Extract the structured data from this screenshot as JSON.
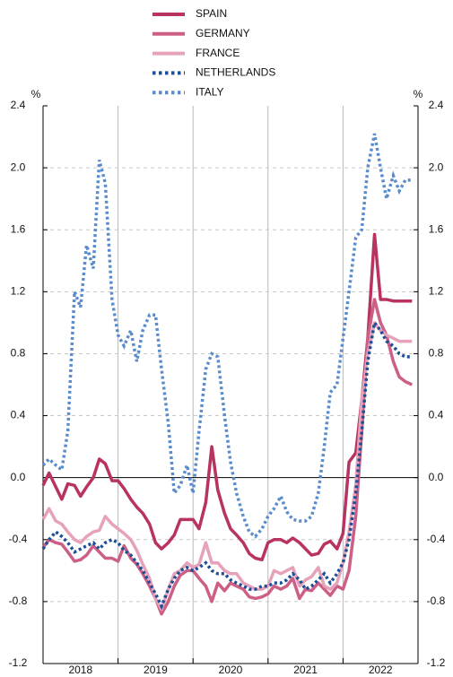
{
  "chart_data": {
    "type": "line",
    "y_unit": "%",
    "xlim": [
      2018,
      2023
    ],
    "xticks": [
      {
        "value": 2018.5,
        "label": "2018"
      },
      {
        "value": 2019.5,
        "label": "2019"
      },
      {
        "value": 2020.5,
        "label": "2020"
      },
      {
        "value": 2021.5,
        "label": "2021"
      },
      {
        "value": 2022.5,
        "label": "2022"
      }
    ],
    "xgrid": [
      2019,
      2020,
      2021,
      2022
    ],
    "ylim": [
      -1.2,
      2.4
    ],
    "yticks": [
      {
        "value": 2.4,
        "label": "2.4"
      },
      {
        "value": 2,
        "label": "2.0"
      },
      {
        "value": 1.6,
        "label": "1.6"
      },
      {
        "value": 1.2,
        "label": "1.2"
      },
      {
        "value": 0.8,
        "label": "0.8"
      },
      {
        "value": 0.4,
        "label": "0.4"
      },
      {
        "value": 0,
        "label": "0.0"
      },
      {
        "value": -0.4,
        "label": "-0.4"
      },
      {
        "value": -0.8,
        "label": "-0.8"
      },
      {
        "value": -1.2,
        "label": "-1.2"
      }
    ],
    "grid": true,
    "x": [
      2018,
      2018.08,
      2018.17,
      2018.25,
      2018.33,
      2018.42,
      2018.5,
      2018.58,
      2018.67,
      2018.75,
      2018.83,
      2018.92,
      2019,
      2019.08,
      2019.17,
      2019.25,
      2019.33,
      2019.42,
      2019.5,
      2019.58,
      2019.67,
      2019.75,
      2019.83,
      2019.92,
      2020,
      2020.08,
      2020.17,
      2020.25,
      2020.33,
      2020.42,
      2020.5,
      2020.58,
      2020.67,
      2020.75,
      2020.83,
      2020.92,
      2021,
      2021.08,
      2021.17,
      2021.25,
      2021.33,
      2021.42,
      2021.5,
      2021.58,
      2021.67,
      2021.75,
      2021.83,
      2021.92,
      2022,
      2022.08,
      2022.17,
      2022.25,
      2022.33,
      2022.42,
      2022.5,
      2022.58,
      2022.67,
      2022.75,
      2022.83,
      2022.92
    ],
    "series": [
      {
        "name": "SPAIN",
        "color": "#b83262",
        "dotted": false,
        "values": [
          -0.05,
          0.03,
          -0.06,
          -0.14,
          -0.04,
          -0.05,
          -0.12,
          -0.06,
          0.0,
          0.12,
          0.09,
          -0.02,
          -0.02,
          -0.07,
          -0.14,
          -0.19,
          -0.23,
          -0.3,
          -0.42,
          -0.46,
          -0.42,
          -0.37,
          -0.27,
          -0.27,
          -0.27,
          -0.33,
          -0.16,
          0.2,
          -0.08,
          -0.23,
          -0.33,
          -0.37,
          -0.42,
          -0.49,
          -0.52,
          -0.53,
          -0.42,
          -0.4,
          -0.4,
          -0.42,
          -0.39,
          -0.42,
          -0.46,
          -0.5,
          -0.49,
          -0.43,
          -0.41,
          -0.46,
          -0.36,
          0.1,
          0.16,
          0.5,
          0.9,
          1.57,
          1.15,
          1.15,
          1.14,
          1.14,
          1.14,
          1.14
        ]
      },
      {
        "name": "GERMANY",
        "color": "#cd5f87",
        "dotted": false,
        "values": [
          -0.45,
          -0.4,
          -0.42,
          -0.43,
          -0.48,
          -0.54,
          -0.53,
          -0.5,
          -0.44,
          -0.48,
          -0.52,
          -0.52,
          -0.54,
          -0.44,
          -0.52,
          -0.56,
          -0.62,
          -0.7,
          -0.78,
          -0.88,
          -0.8,
          -0.7,
          -0.63,
          -0.6,
          -0.6,
          -0.65,
          -0.7,
          -0.8,
          -0.68,
          -0.73,
          -0.68,
          -0.7,
          -0.72,
          -0.77,
          -0.78,
          -0.77,
          -0.75,
          -0.7,
          -0.72,
          -0.7,
          -0.65,
          -0.78,
          -0.72,
          -0.73,
          -0.68,
          -0.72,
          -0.76,
          -0.7,
          -0.72,
          -0.6,
          -0.25,
          0.3,
          0.9,
          1.15,
          1.0,
          0.92,
          0.75,
          0.65,
          0.62,
          0.6
        ]
      },
      {
        "name": "FRANCE",
        "color": "#e6a2ba",
        "dotted": false,
        "values": [
          -0.27,
          -0.2,
          -0.28,
          -0.3,
          -0.35,
          -0.4,
          -0.42,
          -0.38,
          -0.35,
          -0.34,
          -0.25,
          -0.3,
          -0.33,
          -0.36,
          -0.4,
          -0.47,
          -0.56,
          -0.65,
          -0.78,
          -0.85,
          -0.72,
          -0.62,
          -0.6,
          -0.55,
          -0.58,
          -0.56,
          -0.42,
          -0.55,
          -0.55,
          -0.6,
          -0.62,
          -0.62,
          -0.68,
          -0.7,
          -0.72,
          -0.72,
          -0.7,
          -0.6,
          -0.62,
          -0.6,
          -0.58,
          -0.7,
          -0.66,
          -0.64,
          -0.58,
          -0.7,
          -0.72,
          -0.68,
          -0.55,
          -0.35,
          -0.05,
          0.5,
          0.8,
          1.0,
          0.95,
          0.92,
          0.9,
          0.88,
          0.88,
          0.88
        ]
      },
      {
        "name": "NETHERLANDS",
        "color": "#1c4f96",
        "dotted": true,
        "values": [
          -0.46,
          -0.4,
          -0.35,
          -0.38,
          -0.42,
          -0.48,
          -0.46,
          -0.44,
          -0.42,
          -0.46,
          -0.42,
          -0.4,
          -0.42,
          -0.47,
          -0.5,
          -0.55,
          -0.6,
          -0.68,
          -0.75,
          -0.83,
          -0.72,
          -0.65,
          -0.6,
          -0.58,
          -0.6,
          -0.58,
          -0.55,
          -0.6,
          -0.62,
          -0.62,
          -0.66,
          -0.68,
          -0.7,
          -0.72,
          -0.72,
          -0.7,
          -0.7,
          -0.68,
          -0.68,
          -0.66,
          -0.62,
          -0.66,
          -0.72,
          -0.7,
          -0.66,
          -0.62,
          -0.68,
          -0.62,
          -0.55,
          -0.4,
          -0.1,
          0.3,
          0.75,
          1.0,
          0.95,
          0.88,
          0.85,
          0.8,
          0.78,
          0.78
        ]
      },
      {
        "name": "ITALY",
        "color": "#5a8ccc",
        "dotted": true,
        "values": [
          0.08,
          0.12,
          0.08,
          0.05,
          0.3,
          1.2,
          1.1,
          1.5,
          1.35,
          2.05,
          1.9,
          1.15,
          0.92,
          0.85,
          0.95,
          0.75,
          0.95,
          1.05,
          1.05,
          0.7,
          0.35,
          -0.1,
          -0.05,
          0.08,
          -0.1,
          0.3,
          0.7,
          0.8,
          0.78,
          0.4,
          0.1,
          -0.1,
          -0.25,
          -0.35,
          -0.38,
          -0.33,
          -0.25,
          -0.2,
          -0.12,
          -0.22,
          -0.27,
          -0.28,
          -0.28,
          -0.25,
          -0.1,
          0.2,
          0.55,
          0.6,
          0.9,
          1.2,
          1.55,
          1.6,
          2.0,
          2.22,
          2.0,
          1.8,
          1.95,
          1.85,
          1.92,
          1.92
        ]
      }
    ]
  }
}
